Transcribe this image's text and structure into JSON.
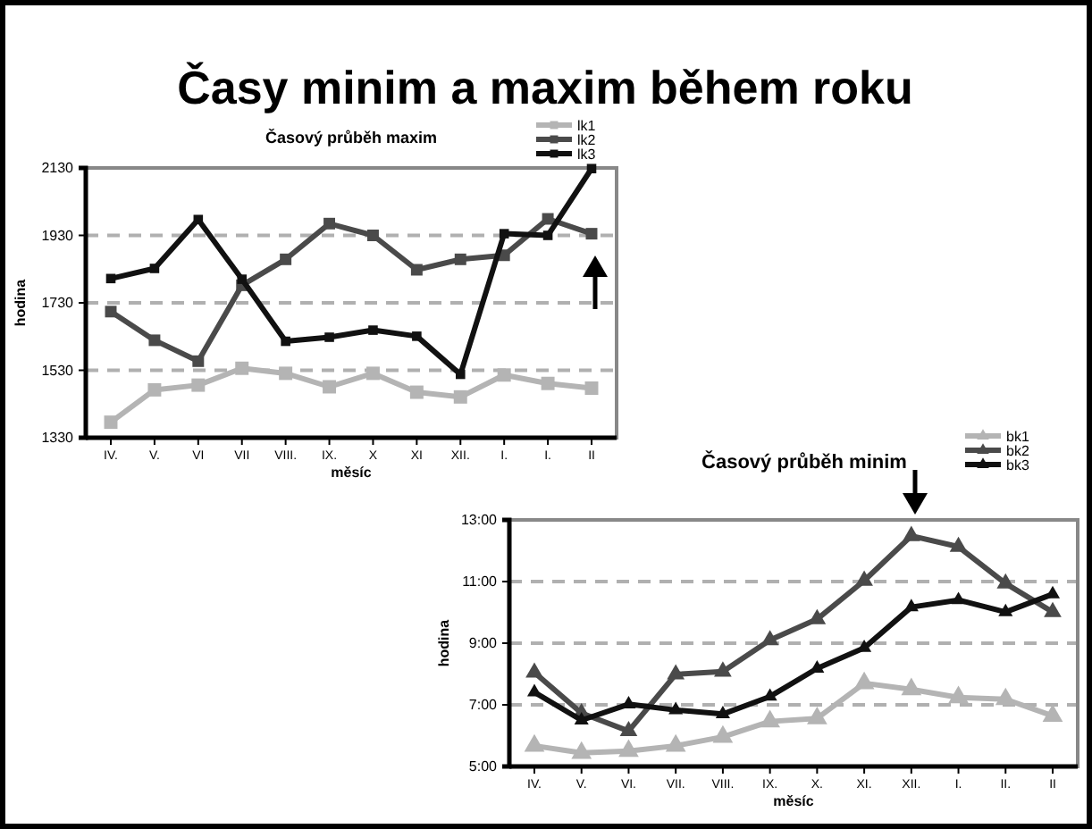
{
  "chart_data": [
    {
      "type": "line",
      "title": "Časy minim a maxim během roku",
      "subtitle": "Časový průběh maxim",
      "xlabel": "měsíc",
      "ylabel": "hodina",
      "categories": [
        "IV.",
        "V.",
        "VI",
        "VII",
        "VIII.",
        "IX.",
        "X",
        "XI",
        "XII.",
        "I.",
        "I.",
        "II"
      ],
      "series": [
        {
          "name": "lk1",
          "color": "#b4b4b4",
          "values": [
            1376,
            1472,
            1486,
            1536,
            1521,
            1481,
            1521,
            1465,
            1451,
            1516,
            1491,
            1477
          ]
        },
        {
          "name": "lk2",
          "color": "#4a4a4a",
          "values": [
            1704,
            1619,
            1557,
            1782,
            1859,
            1965,
            1930,
            1828,
            1859,
            1871,
            1979,
            1935
          ]
        },
        {
          "name": "lk3",
          "color": "#111111",
          "values": [
            1802,
            1832,
            1977,
            1800,
            1616,
            1628,
            1649,
            1631,
            1518,
            1935,
            1930,
            2128
          ]
        }
      ],
      "ylim": [
        1330,
        2130
      ],
      "yticks": [
        1330,
        1530,
        1730,
        1930,
        2130
      ],
      "grid": "y",
      "legend": "top right",
      "marker": "square",
      "line_style": "solid"
    },
    {
      "type": "line",
      "title": "Časový průběh minim",
      "xlabel": "měsíc",
      "ylabel": "hodina",
      "categories": [
        "IV.",
        "V.",
        "VI.",
        "VII.",
        "VIII.",
        "IX.",
        "X.",
        "XI.",
        "XII.",
        "I.",
        "II.",
        "II"
      ],
      "series": [
        {
          "name": "bk1",
          "color": "#b4b4b4",
          "values": [
            5.67,
            5.44,
            5.5,
            5.67,
            5.96,
            6.46,
            6.56,
            7.7,
            7.5,
            7.24,
            7.18,
            6.64
          ]
        },
        {
          "name": "bk2",
          "color": "#4a4a4a",
          "values": [
            8.05,
            6.73,
            6.15,
            7.99,
            8.08,
            9.1,
            9.78,
            11.03,
            12.48,
            12.13,
            10.94,
            10.01
          ]
        },
        {
          "name": "bk3",
          "color": "#111111",
          "values": [
            7.41,
            6.5,
            7.02,
            6.83,
            6.7,
            7.27,
            8.18,
            8.85,
            10.17,
            10.4,
            10.01,
            10.59
          ]
        }
      ],
      "ylim": [
        5,
        13
      ],
      "yticks": [
        {
          "value": 5,
          "label": "5:00"
        },
        {
          "value": 7,
          "label": "7:00"
        },
        {
          "value": 9,
          "label": "9:00"
        },
        {
          "value": 11,
          "label": "11:00"
        },
        {
          "value": 13,
          "label": "13:00"
        }
      ],
      "grid": "y",
      "legend": "top right",
      "marker": "triangle",
      "line_style": "solid"
    }
  ]
}
